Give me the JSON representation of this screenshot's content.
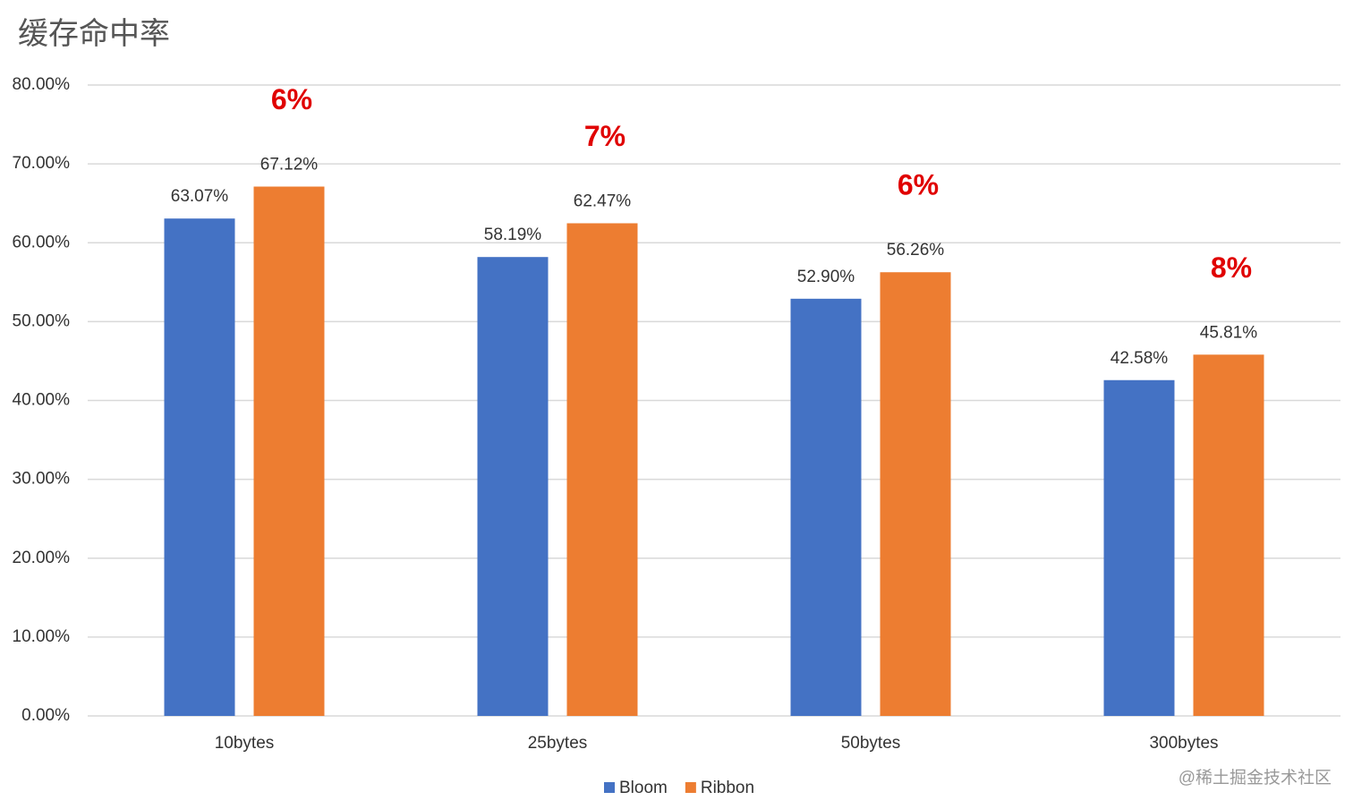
{
  "chart_data": {
    "type": "bar",
    "title": "缓存命中率",
    "categories": [
      "10bytes",
      "25bytes",
      "50bytes",
      "300bytes"
    ],
    "series": [
      {
        "name": "Bloom",
        "color": "#4472c4",
        "values": [
          63.07,
          58.19,
          52.9,
          42.58
        ],
        "value_labels": [
          "63.07%",
          "58.19%",
          "52.90%",
          "42.58%"
        ]
      },
      {
        "name": "Ribbon",
        "color": "#ed7d31",
        "values": [
          67.12,
          62.47,
          56.26,
          45.81
        ],
        "value_labels": [
          "67.12%",
          "62.47%",
          "56.26%",
          "45.81%"
        ]
      }
    ],
    "annotations": [
      "6%",
      "7%",
      "6%",
      "8%"
    ],
    "ylim": [
      0,
      80
    ],
    "yticks": [
      {
        "value": 0,
        "label": "0.00%"
      },
      {
        "value": 10,
        "label": "10.00%"
      },
      {
        "value": 20,
        "label": "20.00%"
      },
      {
        "value": 30,
        "label": "30.00%"
      },
      {
        "value": 40,
        "label": "40.00%"
      },
      {
        "value": 50,
        "label": "50.00%"
      },
      {
        "value": 60,
        "label": "60.00%"
      },
      {
        "value": 70,
        "label": "70.00%"
      },
      {
        "value": 80,
        "label": "80.00%"
      }
    ],
    "grid": true,
    "legend": "bottom",
    "watermark": "@稀土掘金技术社区"
  }
}
